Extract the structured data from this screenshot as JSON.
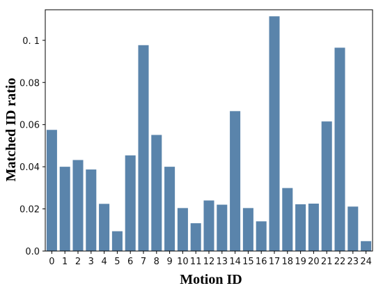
{
  "chart_data": {
    "type": "bar",
    "title": "",
    "xlabel": "Motion ID",
    "ylabel": "Matched ID ratio",
    "categories": [
      "0",
      "1",
      "2",
      "3",
      "4",
      "5",
      "6",
      "7",
      "8",
      "9",
      "10",
      "11",
      "12",
      "13",
      "14",
      "15",
      "16",
      "17",
      "18",
      "19",
      "20",
      "21",
      "22",
      "23",
      "24"
    ],
    "values": [
      0.0575,
      0.04,
      0.0432,
      0.0387,
      0.0224,
      0.0094,
      0.0454,
      0.0977,
      0.0551,
      0.04,
      0.0204,
      0.0132,
      0.024,
      0.022,
      0.0664,
      0.0204,
      0.0141,
      0.1114,
      0.0299,
      0.0222,
      0.0225,
      0.0615,
      0.0965,
      0.0211,
      0.0047
    ],
    "yticks": [
      0.0,
      0.02,
      0.04,
      0.06,
      0.08,
      0.1
    ],
    "ytick_labels": [
      "0.0",
      "0.02",
      "0.04",
      "0.06",
      "0.08",
      "0. 1"
    ],
    "ylim": [
      0,
      0.1145
    ],
    "grid": false,
    "bar_color": "#5a84ab"
  }
}
